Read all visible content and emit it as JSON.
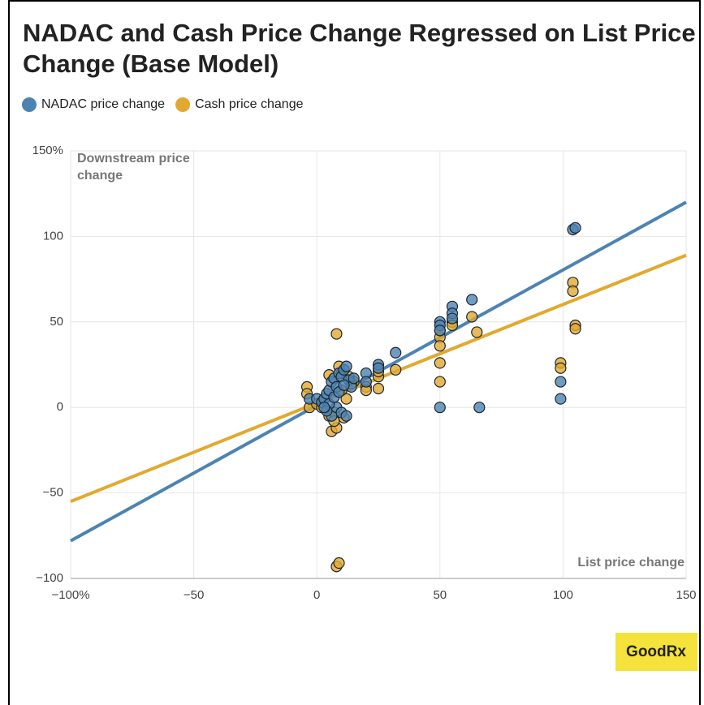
{
  "chart_data": {
    "type": "scatter",
    "title": "NADAC and Cash Price Change Regressed on List Price Change (Base Model)",
    "y_label": "Downstream price change",
    "x_label": "List price change",
    "logo": "GoodRx",
    "xlim": [
      -100,
      150
    ],
    "ylim": [
      -100,
      150
    ],
    "xticks": [
      {
        "value": -100,
        "label": "−100%"
      },
      {
        "value": -50,
        "label": "−50"
      },
      0,
      50,
      100,
      150
    ],
    "yticks": [
      {
        "value": -100,
        "label": "−100"
      },
      {
        "value": -50,
        "label": "−50"
      },
      0,
      50,
      100,
      {
        "value": 150,
        "label": "150%"
      }
    ],
    "grid": true,
    "series": [
      {
        "name": "NADAC price change",
        "color": "#4d83b3",
        "x": [
          -3,
          0,
          2,
          3,
          4,
          5,
          6,
          7,
          8,
          9,
          10,
          11,
          12,
          13,
          14,
          15,
          20,
          20,
          25,
          25,
          32,
          50,
          50,
          50,
          50,
          55,
          55,
          55,
          63,
          66,
          99,
          99,
          104,
          105,
          6,
          8,
          10,
          12,
          5,
          7,
          9,
          11,
          4,
          3
        ],
        "values": [
          5,
          5,
          3,
          5,
          8,
          10,
          15,
          17,
          12,
          20,
          18,
          22,
          24,
          16,
          12,
          17,
          20,
          15,
          25,
          23,
          32,
          50,
          48,
          45,
          0,
          59,
          55,
          52,
          63,
          0,
          15,
          5,
          104,
          105,
          -5,
          0,
          -3,
          -5,
          2,
          6,
          9,
          13,
          -2,
          0
        ],
        "trend": {
          "x": [
            -100,
            150
          ],
          "values": [
            -78,
            120
          ]
        }
      },
      {
        "name": "Cash price change",
        "color": "#e2a92f",
        "x": [
          -4,
          -4,
          -3,
          0,
          2,
          5,
          6,
          8,
          7,
          8,
          9,
          10,
          5,
          13,
          15,
          20,
          20,
          25,
          25,
          25,
          32,
          50,
          50,
          50,
          50,
          50,
          55,
          55,
          63,
          65,
          99,
          99,
          104,
          104,
          105,
          105,
          8,
          9,
          7,
          11,
          12,
          10,
          14
        ],
        "values": [
          12,
          8,
          0,
          2,
          0,
          -5,
          -14,
          -12,
          -3,
          43,
          24,
          20,
          19,
          18,
          15,
          12,
          10,
          18,
          11,
          21,
          22,
          41,
          36,
          26,
          15,
          45,
          50,
          48,
          53,
          44,
          26,
          23,
          73,
          68,
          48,
          46,
          -93,
          -91,
          -8,
          -6,
          5,
          10,
          14
        ],
        "trend": {
          "x": [
            -100,
            150
          ],
          "values": [
            -55,
            89
          ]
        }
      }
    ]
  }
}
